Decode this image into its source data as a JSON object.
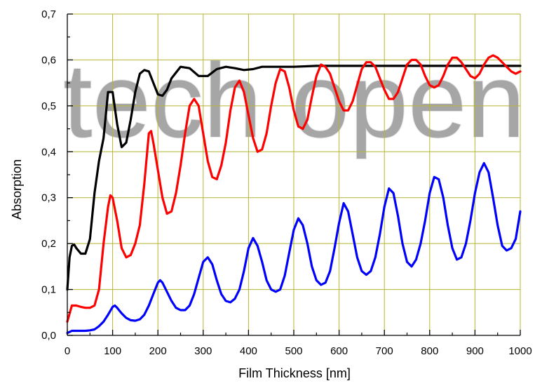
{
  "chart_data": {
    "type": "line",
    "title": "",
    "xlabel": "Film Thickness [nm]",
    "ylabel": "Absorption",
    "xlim": [
      0,
      1000
    ],
    "ylim": [
      0,
      0.7
    ],
    "grid": true,
    "grid_color": "#b5b535",
    "x_ticks": [
      0,
      100,
      200,
      300,
      400,
      500,
      600,
      700,
      800,
      900,
      1000
    ],
    "x_tick_labels": [
      "0",
      "100",
      "200",
      "300",
      "400",
      "500",
      "600",
      "700",
      "800",
      "900",
      "1000"
    ],
    "y_ticks": [
      0,
      0.1,
      0.2,
      0.3,
      0.4,
      0.5,
      0.6,
      0.7
    ],
    "y_tick_labels": [
      "0,0",
      "0,1",
      "0,2",
      "0,3",
      "0,4",
      "0,5",
      "0,6",
      "0,7"
    ],
    "series": [
      {
        "color": "#000000",
        "x": [
          0,
          5,
          10,
          15,
          20,
          30,
          40,
          50,
          60,
          70,
          80,
          90,
          100,
          110,
          120,
          130,
          140,
          150,
          160,
          170,
          180,
          190,
          200,
          210,
          220,
          230,
          250,
          270,
          290,
          310,
          330,
          350,
          370,
          390,
          410,
          430,
          450,
          470,
          500,
          550,
          600,
          700,
          800,
          900,
          1000
        ],
        "y": [
          0.1,
          0.17,
          0.195,
          0.198,
          0.19,
          0.178,
          0.178,
          0.21,
          0.31,
          0.38,
          0.43,
          0.53,
          0.53,
          0.46,
          0.41,
          0.42,
          0.47,
          0.53,
          0.57,
          0.578,
          0.575,
          0.55,
          0.525,
          0.522,
          0.535,
          0.56,
          0.585,
          0.582,
          0.565,
          0.565,
          0.58,
          0.585,
          0.582,
          0.578,
          0.58,
          0.585,
          0.585,
          0.585,
          0.585,
          0.587,
          0.587,
          0.587,
          0.587,
          0.587,
          0.587
        ]
      },
      {
        "color": "#ff0000",
        "x": [
          0,
          10,
          20,
          30,
          40,
          50,
          60,
          70,
          80,
          90,
          95,
          100,
          110,
          120,
          130,
          140,
          150,
          160,
          170,
          180,
          185,
          190,
          200,
          210,
          220,
          230,
          240,
          250,
          260,
          270,
          280,
          290,
          300,
          310,
          320,
          330,
          340,
          350,
          360,
          370,
          380,
          390,
          400,
          410,
          420,
          430,
          440,
          450,
          460,
          470,
          480,
          490,
          500,
          510,
          520,
          530,
          540,
          550,
          560,
          570,
          580,
          590,
          600,
          610,
          620,
          630,
          640,
          650,
          660,
          670,
          680,
          690,
          700,
          710,
          720,
          730,
          740,
          750,
          760,
          770,
          780,
          790,
          800,
          810,
          820,
          830,
          840,
          850,
          860,
          870,
          880,
          890,
          900,
          910,
          920,
          930,
          940,
          950,
          960,
          970,
          980,
          990,
          1000
        ],
        "y": [
          0.03,
          0.065,
          0.065,
          0.062,
          0.06,
          0.06,
          0.065,
          0.1,
          0.2,
          0.28,
          0.305,
          0.3,
          0.25,
          0.19,
          0.17,
          0.175,
          0.2,
          0.24,
          0.33,
          0.44,
          0.445,
          0.42,
          0.36,
          0.3,
          0.265,
          0.27,
          0.31,
          0.37,
          0.44,
          0.5,
          0.515,
          0.5,
          0.44,
          0.38,
          0.345,
          0.34,
          0.37,
          0.42,
          0.49,
          0.54,
          0.555,
          0.53,
          0.48,
          0.43,
          0.4,
          0.405,
          0.44,
          0.5,
          0.55,
          0.58,
          0.575,
          0.54,
          0.49,
          0.455,
          0.45,
          0.47,
          0.52,
          0.565,
          0.59,
          0.585,
          0.57,
          0.54,
          0.51,
          0.49,
          0.49,
          0.51,
          0.545,
          0.58,
          0.595,
          0.595,
          0.585,
          0.56,
          0.535,
          0.515,
          0.515,
          0.53,
          0.56,
          0.59,
          0.6,
          0.6,
          0.59,
          0.565,
          0.545,
          0.54,
          0.545,
          0.565,
          0.59,
          0.605,
          0.605,
          0.595,
          0.58,
          0.565,
          0.56,
          0.57,
          0.59,
          0.605,
          0.61,
          0.605,
          0.595,
          0.585,
          0.575,
          0.57,
          0.575
        ]
      },
      {
        "color": "#0000ff",
        "x": [
          0,
          10,
          20,
          30,
          40,
          50,
          60,
          70,
          80,
          90,
          100,
          105,
          110,
          120,
          130,
          140,
          150,
          160,
          170,
          180,
          190,
          200,
          205,
          210,
          220,
          230,
          240,
          250,
          260,
          270,
          280,
          290,
          300,
          310,
          320,
          330,
          340,
          350,
          360,
          370,
          380,
          390,
          400,
          410,
          420,
          430,
          440,
          450,
          460,
          470,
          480,
          490,
          500,
          510,
          520,
          530,
          540,
          550,
          560,
          570,
          580,
          590,
          600,
          610,
          620,
          630,
          640,
          650,
          660,
          670,
          680,
          690,
          700,
          710,
          720,
          730,
          740,
          750,
          760,
          770,
          780,
          790,
          800,
          810,
          820,
          830,
          840,
          850,
          860,
          870,
          880,
          890,
          900,
          910,
          920,
          930,
          940,
          950,
          960,
          970,
          980,
          990,
          1000
        ],
        "y": [
          0.005,
          0.01,
          0.01,
          0.01,
          0.01,
          0.011,
          0.013,
          0.02,
          0.03,
          0.045,
          0.062,
          0.065,
          0.06,
          0.048,
          0.038,
          0.033,
          0.032,
          0.035,
          0.045,
          0.065,
          0.09,
          0.115,
          0.12,
          0.115,
          0.095,
          0.075,
          0.06,
          0.055,
          0.055,
          0.065,
          0.09,
          0.125,
          0.16,
          0.17,
          0.155,
          0.12,
          0.09,
          0.075,
          0.072,
          0.08,
          0.1,
          0.14,
          0.19,
          0.212,
          0.195,
          0.16,
          0.12,
          0.1,
          0.095,
          0.1,
          0.13,
          0.18,
          0.23,
          0.255,
          0.24,
          0.2,
          0.15,
          0.12,
          0.11,
          0.115,
          0.14,
          0.19,
          0.245,
          0.288,
          0.27,
          0.22,
          0.17,
          0.14,
          0.132,
          0.14,
          0.17,
          0.22,
          0.28,
          0.32,
          0.31,
          0.26,
          0.2,
          0.16,
          0.15,
          0.165,
          0.2,
          0.25,
          0.31,
          0.345,
          0.34,
          0.3,
          0.24,
          0.19,
          0.165,
          0.17,
          0.2,
          0.25,
          0.31,
          0.355,
          0.375,
          0.355,
          0.3,
          0.24,
          0.195,
          0.185,
          0.19,
          0.21,
          0.27
        ]
      }
    ]
  },
  "watermark": {
    "text": "tech open",
    "color": "#cfcfcf"
  }
}
